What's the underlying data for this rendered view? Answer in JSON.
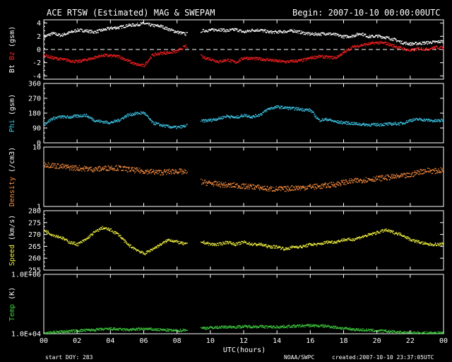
{
  "header": {
    "title": "ACE RTSW (Estimated) MAG & SWEPAM",
    "begin": "Begin: 2007-10-10 00:00:00UTC"
  },
  "footer": {
    "start_doy": "start DOY: 283",
    "agency": "NOAA/SWPC",
    "created": "created:2007-10-10 23:37:05UTC"
  },
  "colors": {
    "bt": "#ffffff",
    "bz": "#ff2020",
    "phi": "#3cc8e8",
    "density": "#ff9040",
    "speed": "#f0f040",
    "temp": "#40d040"
  },
  "chart_data": {
    "type": "line",
    "xlabel": "UTC(hours)",
    "x_ticks": [
      "00",
      "02",
      "04",
      "06",
      "08",
      "10",
      "12",
      "14",
      "16",
      "18",
      "20",
      "22",
      "00"
    ],
    "xlim": [
      0,
      24
    ],
    "gaps_hours": [
      [
        8.6,
        9.4
      ]
    ],
    "panels": [
      {
        "id": "mag",
        "ylabel_parts": [
          "Bt",
          "Bz",
          "(gsm)"
        ],
        "ylim": [
          -4.5,
          4.5
        ],
        "y_ticks": [
          "4",
          "2",
          "0",
          "-2",
          "-4"
        ],
        "y_tick_values": [
          4,
          2,
          0,
          -2,
          -4
        ],
        "zero_dashed": true,
        "series": [
          {
            "name": "Bt",
            "color": "#ffffff",
            "x": [
              0,
              0.5,
              1,
              1.5,
              2,
              2.5,
              3,
              3.5,
              4,
              4.5,
              5,
              5.5,
              6,
              6.5,
              7,
              7.5,
              8,
              8.5,
              9.5,
              10,
              10.5,
              11,
              11.5,
              12,
              12.5,
              13,
              13.5,
              14,
              14.5,
              15,
              15.5,
              16,
              16.5,
              17,
              17.5,
              18,
              18.5,
              19,
              19.5,
              20,
              20.5,
              21,
              21.5,
              22,
              22.5,
              23,
              23.5,
              24
            ],
            "values": [
              2.0,
              2.5,
              2.2,
              2.6,
              3.0,
              2.9,
              2.7,
              3.0,
              3.3,
              3.4,
              3.7,
              3.8,
              4.0,
              3.7,
              3.6,
              3.1,
              2.7,
              2.4,
              2.9,
              3.0,
              3.1,
              2.9,
              3.1,
              2.7,
              3.0,
              3.0,
              2.7,
              2.7,
              2.8,
              2.9,
              2.6,
              2.4,
              2.4,
              2.5,
              2.3,
              2.0,
              2.1,
              2.5,
              2.0,
              2.1,
              1.9,
              1.6,
              1.1,
              0.9,
              1.0,
              1.1,
              1.2,
              1.3
            ]
          },
          {
            "name": "Bz",
            "color": "#ff2020",
            "x": [
              0,
              0.5,
              1,
              1.5,
              2,
              2.5,
              3,
              3.5,
              4,
              4.5,
              5,
              5.5,
              6,
              6.5,
              7,
              7.5,
              8,
              8.5,
              9.5,
              10,
              10.5,
              11,
              11.5,
              12,
              12.5,
              13,
              13.5,
              14,
              14.5,
              15,
              15.5,
              16,
              16.5,
              17,
              17.5,
              18,
              18.5,
              19,
              19.5,
              20,
              20.5,
              21,
              21.5,
              22,
              22.5,
              23,
              23.5,
              24
            ],
            "values": [
              -0.8,
              -1.2,
              -1.4,
              -1.6,
              -1.8,
              -1.5,
              -1.2,
              -0.8,
              -0.9,
              -1.0,
              -1.6,
              -2.2,
              -2.4,
              -0.8,
              -0.5,
              -0.4,
              -0.2,
              0.6,
              -1.1,
              -1.4,
              -1.8,
              -1.5,
              -1.9,
              -1.2,
              -1.3,
              -1.4,
              -1.5,
              -1.7,
              -1.8,
              -1.7,
              -1.6,
              -1.2,
              -1.0,
              -1.1,
              -1.2,
              -0.4,
              0.4,
              0.7,
              0.9,
              1.1,
              1.0,
              0.6,
              0.2,
              -0.1,
              0.2,
              0.1,
              0.4,
              0.3
            ]
          }
        ]
      },
      {
        "id": "phi",
        "ylabel_parts": [
          "Phi",
          "(gsm)"
        ],
        "ylim": [
          0,
          360
        ],
        "y_ticks": [
          "360",
          "270",
          "180",
          "90",
          "0"
        ],
        "y_tick_values": [
          360,
          270,
          180,
          90,
          0
        ],
        "series": [
          {
            "name": "Phi",
            "color": "#3cc8e8",
            "x": [
              0,
              0.5,
              1,
              1.5,
              2,
              2.5,
              3,
              3.5,
              4,
              4.5,
              5,
              5.5,
              6,
              6.5,
              7,
              7.5,
              8,
              8.5,
              9.5,
              10,
              10.5,
              11,
              11.5,
              12,
              12.5,
              13,
              13.5,
              14,
              14.5,
              15,
              15.5,
              16,
              16.5,
              17,
              17.5,
              18,
              18.5,
              19,
              19.5,
              20,
              20.5,
              21,
              21.5,
              22,
              22.5,
              23,
              23.5,
              24
            ],
            "values": [
              115,
              150,
              160,
              158,
              165,
              170,
              140,
              130,
              125,
              140,
              170,
              180,
              185,
              125,
              110,
              100,
              95,
              105,
              135,
              140,
              150,
              165,
              155,
              170,
              160,
              175,
              210,
              220,
              215,
              210,
              205,
              200,
              140,
              145,
              130,
              125,
              120,
              115,
              112,
              113,
              115,
              118,
              120,
              140,
              145,
              140,
              135,
              140
            ]
          }
        ]
      },
      {
        "id": "density",
        "ylabel_parts": [
          "Density",
          "(/cm3)"
        ],
        "log": true,
        "ylim": [
          1,
          10
        ],
        "y_ticks": [
          "10",
          "1"
        ],
        "y_tick_values": [
          10,
          1
        ],
        "series": [
          {
            "name": "Density",
            "color": "#ff9040",
            "x": [
              0,
              0.5,
              1,
              1.5,
              2,
              2.5,
              3,
              3.5,
              4,
              4.5,
              5,
              5.5,
              6,
              6.5,
              7,
              7.5,
              8,
              8.5,
              9.5,
              10,
              10.5,
              11,
              11.5,
              12,
              12.5,
              13,
              13.5,
              14,
              14.5,
              15,
              15.5,
              16,
              16.5,
              17,
              17.5,
              18,
              18.5,
              19,
              19.5,
              20,
              20.5,
              21,
              21.5,
              22,
              22.5,
              23,
              23.5,
              24
            ],
            "values": [
              5.2,
              5.0,
              4.8,
              4.6,
              4.5,
              4.4,
              4.3,
              4.4,
              4.6,
              4.5,
              4.3,
              4.1,
              4.0,
              3.9,
              3.8,
              3.9,
              4.0,
              3.8,
              2.6,
              2.5,
              2.4,
              2.3,
              2.3,
              2.2,
              2.2,
              2.1,
              2.0,
              2.0,
              2.0,
              2.1,
              2.1,
              2.2,
              2.2,
              2.3,
              2.4,
              2.6,
              2.7,
              2.8,
              2.9,
              3.0,
              3.1,
              3.2,
              3.3,
              3.4,
              3.9,
              4.1,
              4.0,
              4.2
            ]
          }
        ]
      },
      {
        "id": "speed",
        "ylabel_parts": [
          "Speed",
          "(km/s)"
        ],
        "ylim": [
          255,
          280
        ],
        "y_ticks": [
          "280",
          "275",
          "270",
          "265",
          "260",
          "255"
        ],
        "y_tick_values": [
          280,
          275,
          270,
          265,
          260,
          255
        ],
        "series": [
          {
            "name": "Speed",
            "color": "#f0f040",
            "x": [
              0,
              0.5,
              1,
              1.5,
              2,
              2.5,
              3,
              3.5,
              4,
              4.5,
              5,
              5.5,
              6,
              6.5,
              7,
              7.5,
              8,
              8.5,
              9.5,
              10,
              10.5,
              11,
              11.5,
              12,
              12.5,
              13,
              13.5,
              14,
              14.5,
              15,
              15.5,
              16,
              16.5,
              17,
              17.5,
              18,
              18.5,
              19,
              19.5,
              20,
              20.5,
              21,
              21.5,
              22,
              22.5,
              23,
              23.5,
              24
            ],
            "values": [
              272,
              270,
              269,
              267,
              266,
              268,
              271,
              273,
              272,
              270,
              266,
              264,
              262,
              264,
              266,
              268,
              267,
              266,
              267,
              266,
              266,
              267,
              266,
              267,
              266,
              266,
              265,
              265,
              264,
              265,
              265,
              266,
              266,
              267,
              267,
              268,
              268,
              269,
              270,
              271,
              272,
              271,
              270,
              268,
              267,
              266,
              266,
              266
            ]
          }
        ]
      },
      {
        "id": "temp",
        "ylabel_parts": [
          "Temp",
          "(K)"
        ],
        "log": true,
        "ylim": [
          10000,
          1000000
        ],
        "y_ticks": [
          "1.0E+06",
          "1.0E+04"
        ],
        "y_tick_values": [
          1000000,
          10000
        ],
        "series": [
          {
            "name": "Temp",
            "color": "#40d040",
            "x": [
              0,
              0.5,
              1,
              1.5,
              2,
              2.5,
              3,
              3.5,
              4,
              4.5,
              5,
              5.5,
              6,
              6.5,
              7,
              7.5,
              8,
              8.5,
              9.5,
              10,
              10.5,
              11,
              11.5,
              12,
              12.5,
              13,
              13.5,
              14,
              14.5,
              15,
              15.5,
              16,
              16.5,
              17,
              17.5,
              18,
              18.5,
              19,
              19.5,
              20,
              20.5,
              21,
              21.5,
              22,
              22.5,
              23,
              23.5,
              24
            ],
            "values": [
              11000,
              11500,
              12000,
              12500,
              13000,
              13500,
              14000,
              14500,
              15000,
              14500,
              14000,
              14500,
              15000,
              14500,
              14000,
              13500,
              13000,
              14000,
              16000,
              16500,
              17000,
              17500,
              17500,
              18000,
              18000,
              18000,
              17500,
              17500,
              18000,
              18500,
              19000,
              19500,
              19000,
              18500,
              17000,
              15500,
              14500,
              14000,
              13500,
              13000,
              12500,
              12000,
              11500,
              11000,
              11000,
              11000,
              11000,
              11000
            ]
          }
        ]
      }
    ]
  }
}
